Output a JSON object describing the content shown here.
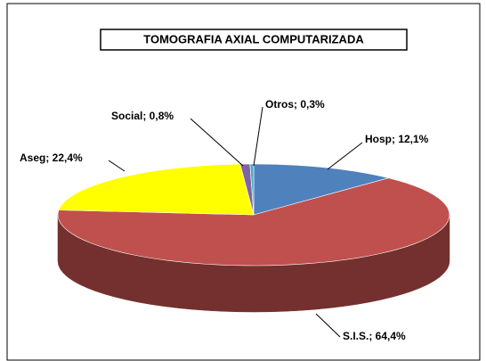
{
  "chart_data": {
    "type": "pie",
    "title": "TOMOGRAFIA AXIAL COMPUTARIZADA",
    "values": [
      12.1,
      64.4,
      22.4,
      0.8,
      0.3
    ],
    "value_labels": [
      "Hosp; 12,1%",
      "S.I.S.; 64,4%",
      "Aseg; 22,4%",
      "Social; 0,8%",
      "Otros; 0,3%"
    ],
    "colors": [
      "#4f81bd",
      "#c0504d",
      "#ffff00",
      "#8064a2",
      "#4bacc6"
    ]
  }
}
